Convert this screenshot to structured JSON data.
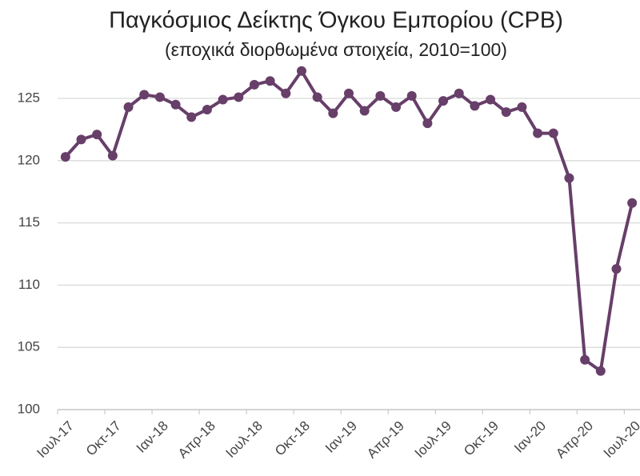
{
  "chart_data": {
    "type": "line",
    "title": "Παγκόσμιος Δείκτης Όγκου Εμπορίου (CPB)",
    "subtitle": "(εποχικά διορθωμένα στοιχεία, 2010=100)",
    "categories": [
      "Ιουλ-17",
      null,
      null,
      "Οκτ-17",
      null,
      null,
      "Ιαν-18",
      null,
      null,
      "Απρ-18",
      null,
      null,
      "Ιουλ-18",
      null,
      null,
      "Οκτ-18",
      null,
      null,
      "Ιαν-19",
      null,
      null,
      "Απρ-19",
      null,
      null,
      "Ιουλ-19",
      null,
      null,
      "Οκτ-19",
      null,
      null,
      "Ιαν-20",
      null,
      null,
      "Απρ-20",
      null,
      null,
      "Ιουλ-20"
    ],
    "series": [
      {
        "name": "CPB",
        "color": "#673f69",
        "values": [
          120.3,
          121.7,
          122.1,
          120.4,
          124.3,
          125.3,
          125.1,
          124.5,
          123.5,
          124.1,
          124.9,
          125.1,
          126.1,
          126.4,
          125.4,
          127.2,
          125.1,
          123.8,
          125.4,
          124.0,
          125.2,
          124.3,
          125.2,
          123.0,
          124.8,
          125.4,
          124.4,
          124.9,
          123.9,
          124.3,
          122.2,
          122.2,
          118.6,
          104.0,
          103.1,
          111.3,
          116.6
        ]
      }
    ],
    "ylim": [
      100,
      127.2
    ],
    "yticks": [
      100,
      105,
      110,
      115,
      120,
      125
    ],
    "grid": true
  }
}
